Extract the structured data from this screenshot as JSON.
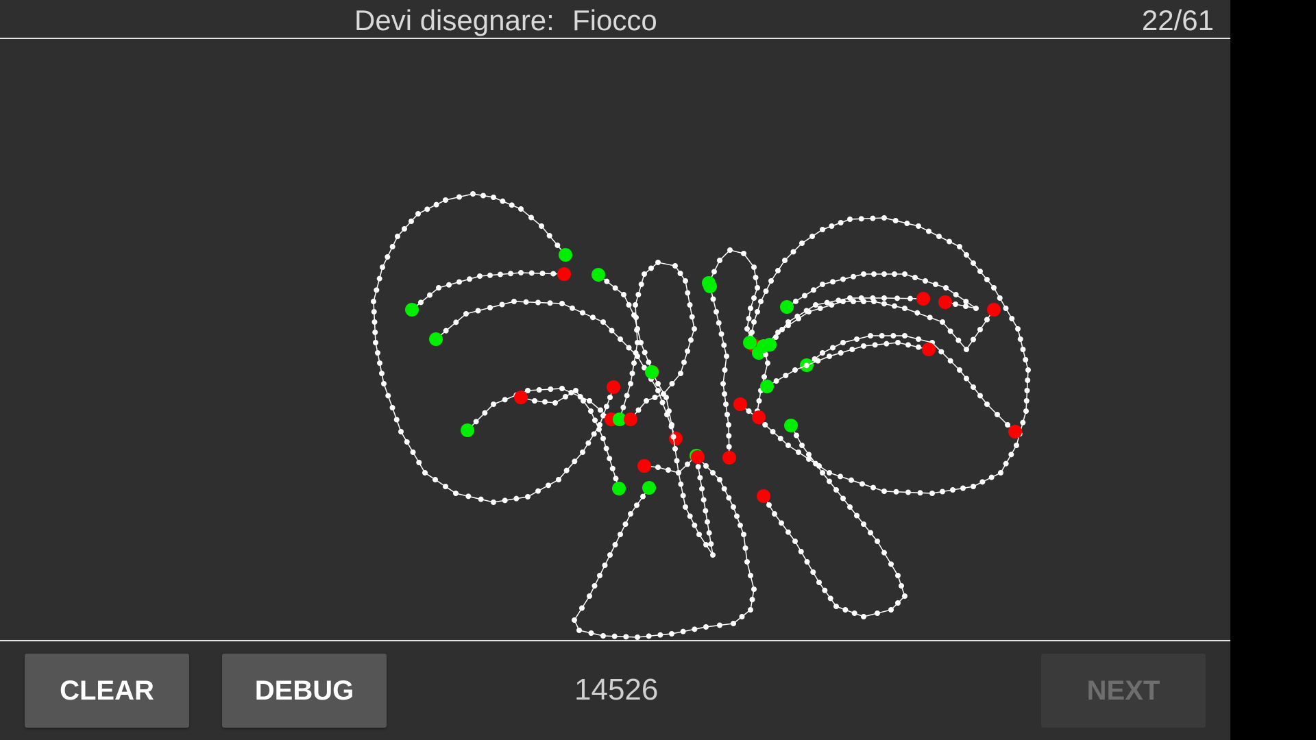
{
  "header": {
    "prompt_label": "Devi disegnare:",
    "prompt_word": "Fiocco",
    "progress": "22/61"
  },
  "footer": {
    "clear_label": "CLEAR",
    "debug_label": "DEBUG",
    "score": "14526",
    "next_label": "NEXT"
  },
  "colors": {
    "background": "#2f2f2f",
    "stroke": "#ffffff",
    "stroke_start": "#00ee00",
    "stroke_end": "#ff0000",
    "button": "#555555",
    "button_disabled": "#3a3a3a"
  },
  "icons": {
    "start_marker": "green-dot",
    "end_marker": "red-dot"
  }
}
